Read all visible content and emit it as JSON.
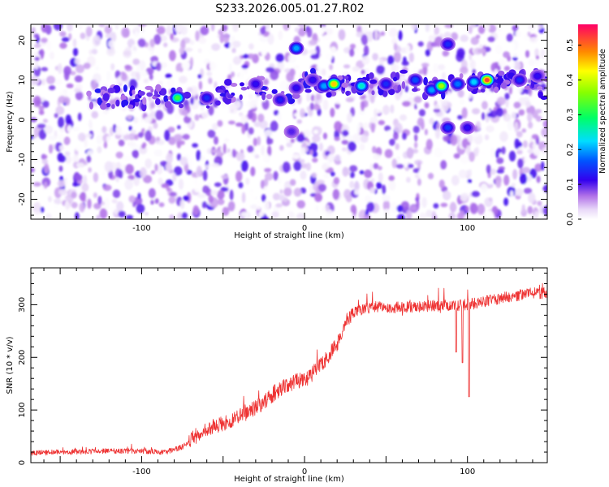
{
  "title": "S233.2026.005.01.27.R02",
  "chart_data": [
    {
      "type": "heatmap",
      "xlabel": "Height of straight line (km)",
      "ylabel": "Frequency (Hz)",
      "xlim": [
        -168,
        149
      ],
      "ylim": [
        -25,
        24
      ],
      "xticks": [
        -100,
        0,
        100
      ],
      "yticks": [
        -20,
        -10,
        0,
        10,
        20
      ],
      "colorbar": {
        "label": "Normalized spectral amplitude",
        "range": [
          0.0,
          0.56
        ],
        "ticks": [
          "0.0",
          "0.1",
          "0.2",
          "0.3",
          "0.4",
          "0.5"
        ]
      },
      "signal_track": [
        {
          "x": -78,
          "y": 5.5,
          "v": 0.32
        },
        {
          "x": -60,
          "y": 5.5,
          "v": 0.14
        },
        {
          "x": -30,
          "y": 9,
          "v": 0.12
        },
        {
          "x": -15,
          "y": 5,
          "v": 0.13
        },
        {
          "x": -5,
          "y": 8,
          "v": 0.12
        },
        {
          "x": 5,
          "y": 10,
          "v": 0.12
        },
        {
          "x": 12,
          "y": 8.5,
          "v": 0.2
        },
        {
          "x": 18,
          "y": 9,
          "v": 0.45
        },
        {
          "x": 35,
          "y": 8.5,
          "v": 0.25
        },
        {
          "x": 50,
          "y": 9,
          "v": 0.14
        },
        {
          "x": 68,
          "y": 10,
          "v": 0.16
        },
        {
          "x": 78,
          "y": 7.5,
          "v": 0.2
        },
        {
          "x": 84,
          "y": 8.5,
          "v": 0.38
        },
        {
          "x": 94,
          "y": 9,
          "v": 0.18
        },
        {
          "x": 104,
          "y": 9.5,
          "v": 0.22
        },
        {
          "x": 112,
          "y": 10,
          "v": 0.52
        },
        {
          "x": 132,
          "y": 10,
          "v": 0.14
        },
        {
          "x": 143,
          "y": 11,
          "v": 0.12
        }
      ],
      "isolated_peaks": [
        {
          "x": -5,
          "y": 18,
          "v": 0.2
        },
        {
          "x": 88,
          "y": 19,
          "v": 0.14
        },
        {
          "x": 88,
          "y": -2,
          "v": 0.15
        },
        {
          "x": -8,
          "y": -3,
          "v": 0.1
        },
        {
          "x": 100,
          "y": -2,
          "v": 0.12
        }
      ]
    },
    {
      "type": "line",
      "xlabel": "Height of straight line (km)",
      "ylabel": "SNR (10 * v/v)",
      "xlim": [
        -168,
        149
      ],
      "ylim": [
        0,
        370
      ],
      "xticks": [
        -100,
        0,
        100
      ],
      "yticks": [
        0,
        100,
        200,
        300
      ],
      "color": "#ee3333",
      "trend": [
        {
          "x": -168,
          "y": 18
        },
        {
          "x": -150,
          "y": 20
        },
        {
          "x": -120,
          "y": 22
        },
        {
          "x": -100,
          "y": 22
        },
        {
          "x": -85,
          "y": 20
        },
        {
          "x": -75,
          "y": 30
        },
        {
          "x": -65,
          "y": 55
        },
        {
          "x": -55,
          "y": 70
        },
        {
          "x": -45,
          "y": 80
        },
        {
          "x": -35,
          "y": 95
        },
        {
          "x": -25,
          "y": 115
        },
        {
          "x": -15,
          "y": 140
        },
        {
          "x": -5,
          "y": 155
        },
        {
          "x": 0,
          "y": 155
        },
        {
          "x": 10,
          "y": 185
        },
        {
          "x": 20,
          "y": 225
        },
        {
          "x": 25,
          "y": 265
        },
        {
          "x": 30,
          "y": 285
        },
        {
          "x": 40,
          "y": 295
        },
        {
          "x": 60,
          "y": 295
        },
        {
          "x": 80,
          "y": 298
        },
        {
          "x": 100,
          "y": 300
        },
        {
          "x": 120,
          "y": 312
        },
        {
          "x": 140,
          "y": 322
        },
        {
          "x": 149,
          "y": 322
        }
      ],
      "dips": [
        {
          "x": 93,
          "y": 210
        },
        {
          "x": 97,
          "y": 190
        },
        {
          "x": 101,
          "y": 125
        }
      ]
    }
  ]
}
